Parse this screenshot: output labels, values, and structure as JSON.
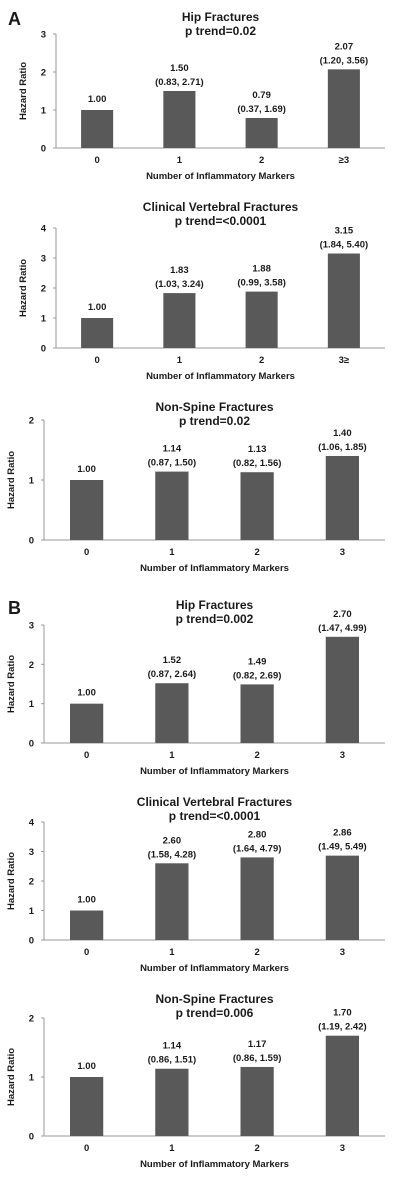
{
  "panels": [
    {
      "letter": "A",
      "chart_indices": [
        0,
        1,
        2
      ]
    },
    {
      "letter": "B",
      "chart_indices": [
        3,
        4,
        5
      ]
    }
  ],
  "bar_color": "#595959",
  "chart_data": [
    {
      "type": "bar",
      "title": "Hip Fractures",
      "subtitle": "p trend=0.02",
      "xlabel": "Number of Inflammatory Markers",
      "ylabel": "Hazard Ratio",
      "categories": [
        "0",
        "1",
        "2",
        "≥3"
      ],
      "values": [
        1.0,
        1.5,
        0.79,
        2.07
      ],
      "value_labels": [
        "1.00",
        "1.50",
        "0.79",
        "2.07"
      ],
      "ci_labels": [
        "",
        "(0.83, 2.71)",
        "(0.37, 1.69)",
        "(1.20, 3.56)"
      ],
      "ylim": [
        0,
        3
      ],
      "yticks": [
        "0",
        "1",
        "2",
        "3"
      ],
      "grid": false
    },
    {
      "type": "bar",
      "title": "Clinical Vertebral Fractures",
      "subtitle": "p trend=<0.0001",
      "xlabel": "Number of Inflammatory Markers",
      "ylabel": "Hazard Ratio",
      "categories": [
        "0",
        "1",
        "2",
        "3≥"
      ],
      "values": [
        1.0,
        1.83,
        1.88,
        3.15
      ],
      "value_labels": [
        "1.00",
        "1.83",
        "1.88",
        "3.15"
      ],
      "ci_labels": [
        "",
        "(1.03, 3.24)",
        "(0.99, 3.58)",
        "(1.84, 5.40)"
      ],
      "ylim": [
        0,
        4
      ],
      "yticks": [
        "0",
        "1",
        "2",
        "3",
        "4"
      ],
      "grid": false
    },
    {
      "type": "bar",
      "title": "Non-Spine Fractures",
      "subtitle": "p trend=0.02",
      "xlabel": "Number of Inflammatory Markers",
      "ylabel": "Hazard Ratio",
      "categories": [
        "0",
        "1",
        "2",
        "3"
      ],
      "values": [
        1.0,
        1.14,
        1.13,
        1.4
      ],
      "value_labels": [
        "1.00",
        "1.14",
        "1.13",
        "1.40"
      ],
      "ci_labels": [
        "",
        "(0.87, 1.50)",
        "(0.82, 1.56)",
        "(1.06, 1.85)"
      ],
      "ylim": [
        0,
        2
      ],
      "yticks": [
        "0",
        "1",
        "2"
      ],
      "grid": false
    },
    {
      "type": "bar",
      "title": "Hip Fractures",
      "subtitle": "p trend=0.002",
      "xlabel": "Number of Inflammatory Markers",
      "ylabel": "Hazard Ratio",
      "categories": [
        "0",
        "1",
        "2",
        "3"
      ],
      "values": [
        1.0,
        1.52,
        1.49,
        2.7
      ],
      "value_labels": [
        "1.00",
        "1.52",
        "1.49",
        "2.70"
      ],
      "ci_labels": [
        "",
        "(0.87, 2.64)",
        "(0.82, 2.69)",
        "(1.47, 4.99)"
      ],
      "ylim": [
        0,
        3
      ],
      "yticks": [
        "0",
        "1",
        "2",
        "3"
      ],
      "grid": false
    },
    {
      "type": "bar",
      "title": "Clinical Vertebral Fractures",
      "subtitle": "p trend=<0.0001",
      "xlabel": "Number of Inflammatory Markers",
      "ylabel": "Hazard Ratio",
      "categories": [
        "0",
        "1",
        "2",
        "3"
      ],
      "values": [
        1.0,
        2.6,
        2.8,
        2.86
      ],
      "value_labels": [
        "1.00",
        "2.60",
        "2.80",
        "2.86"
      ],
      "ci_labels": [
        "",
        "(1.58, 4.28)",
        "(1.64, 4.79)",
        "(1.49, 5.49)"
      ],
      "ylim": [
        0,
        4
      ],
      "yticks": [
        "0",
        "1",
        "2",
        "3",
        "4"
      ],
      "grid": false
    },
    {
      "type": "bar",
      "title": "Non-Spine Fractures",
      "subtitle": "p trend=0.006",
      "xlabel": "Number of Inflammatory Markers",
      "ylabel": "Hazard Ratio",
      "categories": [
        "0",
        "1",
        "2",
        "3"
      ],
      "values": [
        1.0,
        1.14,
        1.17,
        1.7
      ],
      "value_labels": [
        "1.00",
        "1.14",
        "1.17",
        "1.70"
      ],
      "ci_labels": [
        "",
        "(0.86, 1.51)",
        "(0.86, 1.59)",
        "(1.19, 2.42)"
      ],
      "ylim": [
        0,
        2
      ],
      "yticks": [
        "0",
        "1",
        "2"
      ],
      "grid": false
    }
  ]
}
